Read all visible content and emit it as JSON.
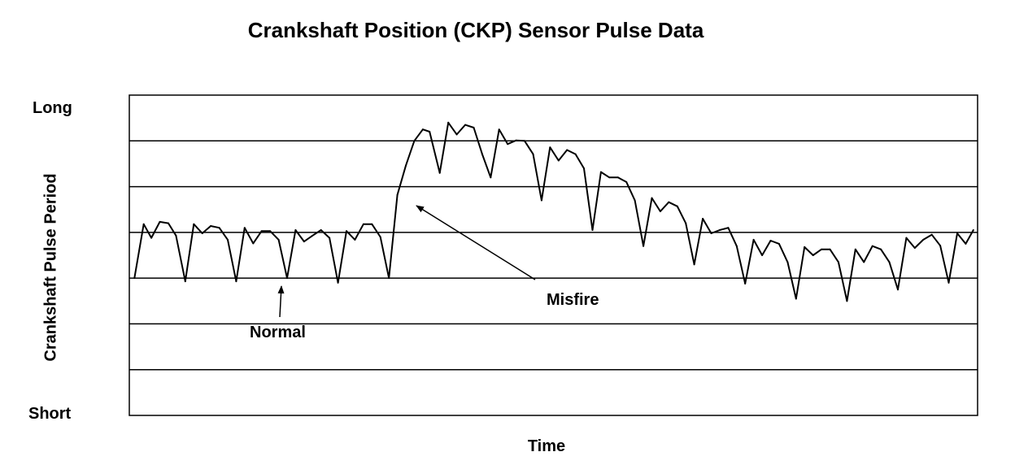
{
  "chart_data": {
    "type": "line",
    "title": "Crankshaft Position (CKP) Sensor Pulse Data",
    "xlabel": "Time",
    "ylabel": "Crankshaft Pulse Period",
    "y_top_label": "Long",
    "y_bottom_label": "Short",
    "ylim": [
      0,
      7
    ],
    "xlim": [
      0,
      1
    ],
    "grid": true,
    "annotations": [
      {
        "text": "Normal",
        "x": 0.18,
        "y": 3
      },
      {
        "text": "Misfire",
        "x": 0.34,
        "y": 4.6
      }
    ],
    "series": [
      {
        "points": [
          [
            0.006,
            3.0
          ],
          [
            0.017,
            4.18
          ],
          [
            0.026,
            3.88
          ],
          [
            0.036,
            4.23
          ],
          [
            0.046,
            4.2
          ],
          [
            0.055,
            3.93
          ],
          [
            0.066,
            2.93
          ],
          [
            0.076,
            4.18
          ],
          [
            0.086,
            3.98
          ],
          [
            0.096,
            4.14
          ],
          [
            0.106,
            4.1
          ],
          [
            0.116,
            3.84
          ],
          [
            0.126,
            2.93
          ],
          [
            0.136,
            4.1
          ],
          [
            0.146,
            3.76
          ],
          [
            0.156,
            4.03
          ],
          [
            0.166,
            4.03
          ],
          [
            0.176,
            3.84
          ],
          [
            0.186,
            3.0
          ],
          [
            0.196,
            4.05
          ],
          [
            0.206,
            3.8
          ],
          [
            0.216,
            3.93
          ],
          [
            0.226,
            4.05
          ],
          [
            0.236,
            3.88
          ],
          [
            0.246,
            2.9
          ],
          [
            0.256,
            4.03
          ],
          [
            0.266,
            3.84
          ],
          [
            0.276,
            4.18
          ],
          [
            0.286,
            4.18
          ],
          [
            0.296,
            3.9
          ],
          [
            0.306,
            3.0
          ],
          [
            0.316,
            4.82
          ],
          [
            0.326,
            5.46
          ],
          [
            0.336,
            6.0
          ],
          [
            0.346,
            6.25
          ],
          [
            0.354,
            6.2
          ],
          [
            0.366,
            5.3
          ],
          [
            0.376,
            6.4
          ],
          [
            0.386,
            6.14
          ],
          [
            0.396,
            6.35
          ],
          [
            0.406,
            6.29
          ],
          [
            0.416,
            5.71
          ],
          [
            0.426,
            5.2
          ],
          [
            0.436,
            6.25
          ],
          [
            0.446,
            5.93
          ],
          [
            0.456,
            6.01
          ],
          [
            0.466,
            6.0
          ],
          [
            0.476,
            5.71
          ],
          [
            0.486,
            4.7
          ],
          [
            0.496,
            5.86
          ],
          [
            0.506,
            5.57
          ],
          [
            0.516,
            5.8
          ],
          [
            0.526,
            5.71
          ],
          [
            0.536,
            5.4
          ],
          [
            0.546,
            4.05
          ],
          [
            0.556,
            5.32
          ],
          [
            0.566,
            5.2
          ],
          [
            0.576,
            5.2
          ],
          [
            0.586,
            5.1
          ],
          [
            0.596,
            4.7
          ],
          [
            0.606,
            3.7
          ],
          [
            0.616,
            4.75
          ],
          [
            0.626,
            4.46
          ],
          [
            0.636,
            4.66
          ],
          [
            0.646,
            4.57
          ],
          [
            0.656,
            4.2
          ],
          [
            0.666,
            3.3
          ],
          [
            0.676,
            4.3
          ],
          [
            0.686,
            3.98
          ],
          [
            0.696,
            4.05
          ],
          [
            0.706,
            4.1
          ],
          [
            0.716,
            3.7
          ],
          [
            0.726,
            2.88
          ],
          [
            0.736,
            3.84
          ],
          [
            0.746,
            3.5
          ],
          [
            0.756,
            3.82
          ],
          [
            0.766,
            3.75
          ],
          [
            0.776,
            3.35
          ],
          [
            0.786,
            2.55
          ],
          [
            0.796,
            3.68
          ],
          [
            0.806,
            3.5
          ],
          [
            0.816,
            3.63
          ],
          [
            0.826,
            3.63
          ],
          [
            0.836,
            3.35
          ],
          [
            0.846,
            2.5
          ],
          [
            0.856,
            3.63
          ],
          [
            0.866,
            3.35
          ],
          [
            0.876,
            3.7
          ],
          [
            0.886,
            3.63
          ],
          [
            0.896,
            3.35
          ],
          [
            0.906,
            2.75
          ],
          [
            0.916,
            3.88
          ],
          [
            0.926,
            3.66
          ],
          [
            0.936,
            3.84
          ],
          [
            0.946,
            3.95
          ],
          [
            0.956,
            3.71
          ],
          [
            0.966,
            2.9
          ],
          [
            0.976,
            3.98
          ],
          [
            0.986,
            3.75
          ],
          [
            0.995,
            4.05
          ]
        ]
      }
    ]
  }
}
